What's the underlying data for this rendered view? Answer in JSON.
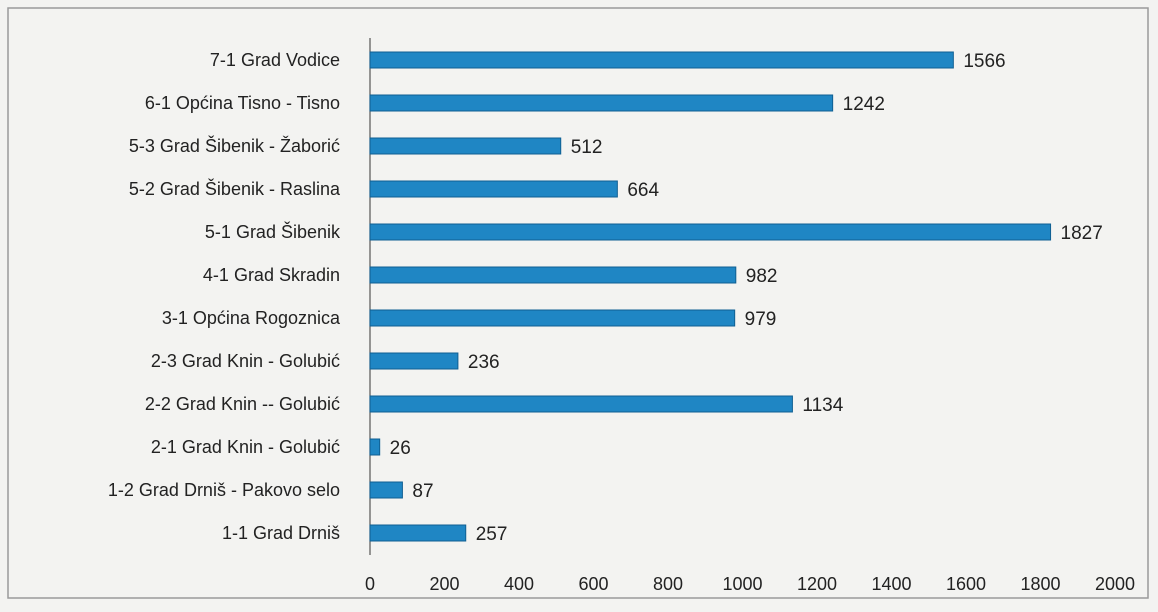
{
  "chart_data": {
    "type": "bar",
    "orientation": "horizontal",
    "categories": [
      "7-1 Grad Vodice",
      "6-1 Općina Tisno - Tisno",
      "5-3 Grad Šibenik - Žaborić",
      "5-2 Grad Šibenik - Raslina",
      "5-1 Grad Šibenik",
      "4-1 Grad Skradin",
      "3-1 Općina Rogoznica",
      "2-3 Grad Knin - Golubić",
      "2-2 Grad Knin -- Golubić",
      "2-1 Grad Knin - Golubić",
      "1-2 Grad Drniš - Pakovo selo",
      "1-1 Grad Drniš"
    ],
    "values": [
      1566,
      1242,
      512,
      664,
      1827,
      982,
      979,
      236,
      1134,
      26,
      87,
      257
    ],
    "data_labels": [
      "1566",
      "1242",
      "512",
      "664",
      "1827",
      "982",
      "979",
      "236",
      "1134",
      "26",
      "87",
      "257"
    ],
    "xlim": [
      0,
      2000
    ],
    "x_ticks": [
      "0",
      "200",
      "400",
      "600",
      "800",
      "1000",
      "1200",
      "1400",
      "1600",
      "1800",
      "2000"
    ],
    "title": "",
    "xlabel": "",
    "ylabel": "",
    "grid": false,
    "legend": "none",
    "bar_color": "#1f86c4",
    "bar_edge_color": "#0f5f92"
  }
}
